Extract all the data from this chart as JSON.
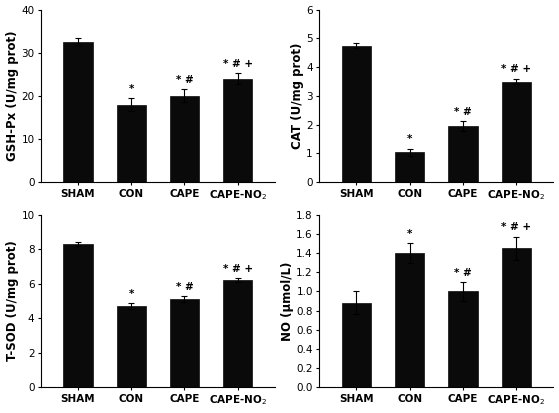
{
  "categories": [
    "SHAM",
    "CON",
    "CAPE",
    "CAPE-NO$_2$"
  ],
  "gsh_values": [
    32.5,
    18.0,
    20.0,
    24.0
  ],
  "gsh_errors": [
    0.8,
    1.5,
    1.5,
    1.2
  ],
  "gsh_ylabel": "GSH-Px (U/mg prot)",
  "gsh_ylim": [
    0,
    40
  ],
  "gsh_yticks": [
    0,
    10,
    20,
    30,
    40
  ],
  "gsh_annotations": [
    "",
    "*",
    "* #",
    "* # +"
  ],
  "cat_values": [
    4.75,
    1.05,
    1.95,
    3.5
  ],
  "cat_errors": [
    0.08,
    0.12,
    0.18,
    0.1
  ],
  "cat_ylabel": "CAT (U/mg prot)",
  "cat_ylim": [
    0,
    6
  ],
  "cat_yticks": [
    0,
    1,
    2,
    3,
    4,
    5,
    6
  ],
  "cat_annotations": [
    "",
    "*",
    "* #",
    "* # +"
  ],
  "tsod_values": [
    8.3,
    4.7,
    5.1,
    6.2
  ],
  "tsod_errors": [
    0.12,
    0.18,
    0.18,
    0.12
  ],
  "tsod_ylabel": "T-SOD (U/mg prot)",
  "tsod_ylim": [
    0,
    10
  ],
  "tsod_yticks": [
    0,
    2,
    4,
    6,
    8,
    10
  ],
  "tsod_annotations": [
    "",
    "*",
    "* #",
    "* # +"
  ],
  "no_values": [
    0.88,
    1.4,
    1.0,
    1.45
  ],
  "no_errors": [
    0.12,
    0.1,
    0.1,
    0.12
  ],
  "no_ylabel": "NO (μmol/L)",
  "no_ylim": [
    0.0,
    1.8
  ],
  "no_yticks": [
    0.0,
    0.2,
    0.4,
    0.6,
    0.8,
    1.0,
    1.2,
    1.4,
    1.6,
    1.8
  ],
  "no_annotations": [
    "",
    "*",
    "* #",
    "* # +"
  ],
  "bar_color": "#0a0a0a",
  "bar_width": 0.55,
  "tick_fontsize": 7.5,
  "label_fontsize": 8.5,
  "annot_fontsize": 7.5
}
